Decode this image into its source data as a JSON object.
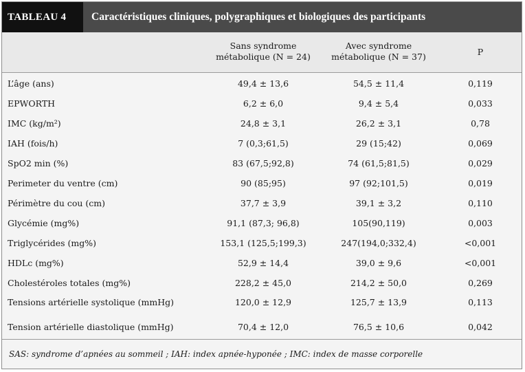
{
  "table": {
    "tag": "TABLEAU 4",
    "title": "Caractéristiques cliniques, polygraphiques et biologiques des participants",
    "columns": {
      "col1": [
        "Sans syndrome",
        "métabolique (N = 24)"
      ],
      "col2": [
        "Avec syndrome",
        "métabolique (N = 37)"
      ],
      "col3": "P"
    },
    "rows": [
      {
        "label": "L’âge (ans)",
        "sans": "49,4 ± 13,6",
        "avec": "54,5 ± 11,4",
        "p": "0,119"
      },
      {
        "label": "EPWORTH",
        "sans": "6,2 ±  6,0",
        "avec": "9,4 ± 5,4",
        "p": "0,033"
      },
      {
        "label": "IMC (kg/m²)",
        "sans": "24,8 ± 3,1",
        "avec": "26,2 ± 3,1",
        "p": "0,78"
      },
      {
        "label": "IAH (fois/h)",
        "sans": "7 (0,3;61,5)",
        "avec": "29 (15;42)",
        "p": "0,069"
      },
      {
        "label": "SpO2 min (%)",
        "sans": "83 (67,5;92,8)",
        "avec": "74 (61,5;81,5)",
        "p": "0,029"
      },
      {
        "label": "Perimeter du ventre (cm)",
        "sans": "90 (85;95)",
        "avec": "97 (92;101,5)",
        "p": "0,019"
      },
      {
        "label": "Périmètre du cou  (cm)",
        "sans": "37,7 ± 3,9",
        "avec": "39,1 ± 3,2",
        "p": "0,110"
      },
      {
        "label": "Glycémie (mg%)",
        "sans": "91,1 (87,3; 96,8)",
        "avec": "105(90,119)",
        "p": "0,003"
      },
      {
        "label": "Triglycérides (mg%)",
        "sans": "153,1 (125,5;199,3)",
        "avec": "247(194,0;332,4)",
        "p": "<0,001"
      },
      {
        "label": "HDLc (mg%)",
        "sans": "52,9 ± 14,4",
        "avec": "39,0 ± 9,6",
        "p": "<0,001"
      },
      {
        "label": "Cholestéroles totales (mg%)",
        "sans": "228,2 ± 45,0",
        "avec": "214,2 ± 50,0",
        "p": "0,269"
      },
      {
        "label": "Tensions artérielle systolique (mmHg)",
        "sans": "120,0 ± 12,9",
        "avec": "125,7 ± 13,9",
        "p": "0,113"
      },
      {
        "label": "Tension artérielle diastolique (mmHg)",
        "sans": "70,4 ± 12,0",
        "avec": "76,5 ± 10,6",
        "p": "0,042"
      }
    ],
    "footnote": "SAS: syndrome d’apnées au sommeil ; IAH: index apnée-hyponée ; IMC: index de masse corporelle"
  }
}
